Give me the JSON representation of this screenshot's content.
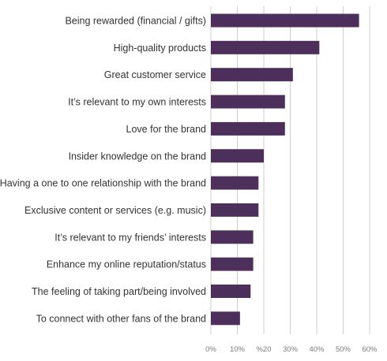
{
  "chart_data": {
    "type": "bar",
    "orientation": "horizontal",
    "categories": [
      "Being rewarded (financial / gifts)",
      "High-quality products",
      "Great customer service",
      "It’s relevant to my own interests",
      "Love for the brand",
      "Insider knowledge on the brand",
      "Having a one to one relationship with the brand",
      "Exclusive content or services (e.g. music)",
      "It’s relevant to my friends’ interests",
      "Enhance my online reputation/status",
      "The feeling of taking part/being involved",
      "To connect with other fans of the brand"
    ],
    "values": [
      56,
      41,
      31,
      28,
      28,
      20,
      18,
      18,
      16,
      16,
      15,
      11
    ],
    "xlim": [
      0,
      60
    ],
    "x_ticks": [
      0,
      10,
      20,
      30,
      40,
      50,
      60
    ],
    "x_tick_labels": [
      "0%",
      "10%",
      "%20",
      "30%",
      "40%",
      "50%",
      "60%"
    ],
    "grid": true,
    "title": "",
    "xlabel": "",
    "ylabel": ""
  },
  "colors": {
    "bar": "#4d2f5c",
    "grid": "#cfcfcf",
    "label": "#333333",
    "tick": "#7a7a7a"
  }
}
